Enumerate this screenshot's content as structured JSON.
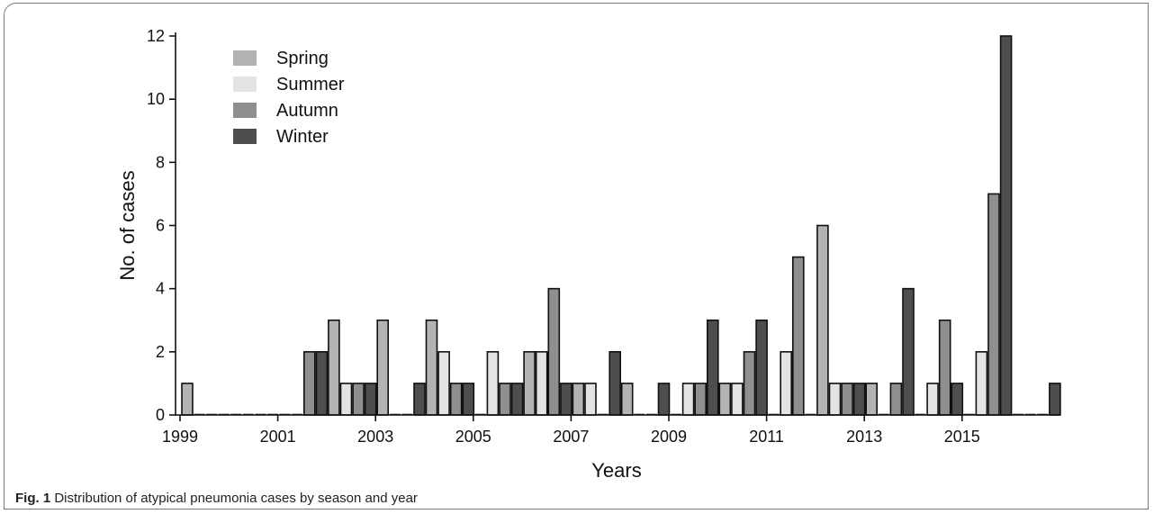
{
  "caption": {
    "label": "Fig. 1",
    "text": "Distribution of atypical pneumonia cases by season and year"
  },
  "chart_data": {
    "type": "bar",
    "xlabel": "Years",
    "ylabel": "No. of cases",
    "ylim": [
      0,
      12
    ],
    "yticks": [
      0,
      2,
      4,
      6,
      8,
      10,
      12
    ],
    "xticks": [
      "1999",
      "2001",
      "2003",
      "2005",
      "2007",
      "2009",
      "2011",
      "2013",
      "2015"
    ],
    "legend_position": "top-left",
    "grid": false,
    "categories": [
      "1999",
      "2000",
      "2001",
      "2002",
      "2003",
      "2004",
      "2005",
      "2006",
      "2007",
      "2008",
      "2009",
      "2010",
      "2011",
      "2012",
      "2013",
      "2014",
      "2015",
      "2016"
    ],
    "series": [
      {
        "name": "Spring",
        "color": "#b3b3b3",
        "values": [
          1,
          0,
          0,
          3,
          3,
          3,
          0,
          2,
          1,
          1,
          0,
          1,
          0,
          6,
          1,
          0,
          0,
          0
        ]
      },
      {
        "name": "Summer",
        "color": "#e3e3e3",
        "values": [
          0,
          0,
          0,
          1,
          0,
          2,
          2,
          2,
          1,
          0,
          1,
          1,
          2,
          1,
          0,
          1,
          2,
          0
        ]
      },
      {
        "name": "Autumn",
        "color": "#8f8f8f",
        "values": [
          0,
          0,
          2,
          1,
          0,
          1,
          1,
          4,
          0,
          0,
          1,
          2,
          5,
          1,
          1,
          3,
          7,
          0
        ]
      },
      {
        "name": "Winter",
        "color": "#4e4e4e",
        "values": [
          0,
          0,
          2,
          1,
          1,
          1,
          1,
          1,
          2,
          1,
          3,
          3,
          0,
          1,
          4,
          1,
          12,
          1
        ]
      }
    ]
  }
}
